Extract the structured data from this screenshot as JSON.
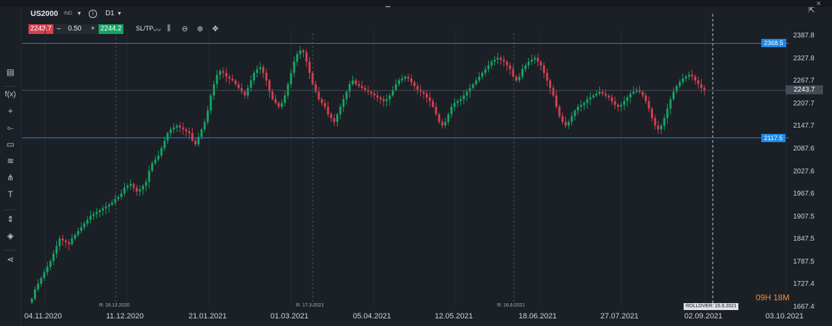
{
  "symbol": {
    "name": "US2000",
    "type": "IND",
    "timeframe": "D1"
  },
  "trade": {
    "sell": "2243.7",
    "qty": "0.50",
    "buy": "2244.2",
    "minus": "–",
    "plus": "+",
    "sltp": "SL/TP"
  },
  "icons": {
    "top": [
      "minimize-icon",
      "close-icon"
    ],
    "toolbar": [
      "line-chart-icon",
      "indicator-icon",
      "zoom-out-icon",
      "zoom-in-icon",
      "crosshair-move-icon"
    ],
    "sidebar": [
      "chart-type-icon",
      "function-icon",
      "crosshair-icon",
      "trendline-icon",
      "rectangle-icon",
      "fibonacci-icon",
      "pitchfork-icon",
      "text-icon",
      "measure-icon",
      "layers-icon",
      "share-icon"
    ],
    "expand": "expand-icon"
  },
  "chart_data": {
    "type": "candlestick",
    "y_range": [
      1667.4,
      2400
    ],
    "price_ticks": [
      "2387.8",
      "2327.8",
      "2267.7",
      "2207.7",
      "2147.7",
      "2087.6",
      "2027.6",
      "1967.6",
      "1907.5",
      "1847.5",
      "1787.5",
      "1727.4",
      "1667.4"
    ],
    "date_labels": [
      "04.11.2020",
      "11.12.2020",
      "21.01.2021",
      "01.03.2021",
      "05.04.2021",
      "12.05.2021",
      "18.06.2021",
      "27.07.2021",
      "02.09.2021",
      "03.10.2021"
    ],
    "rollover_markers": [
      "R: 16.12.2020",
      "R: 17.3.2021",
      "R: 16.6.2021"
    ],
    "rollover_badge": "ROLLOVER: 15.9.2021",
    "horizontal_lines": [
      {
        "price": 2368.5,
        "label": "2368.5"
      },
      {
        "price": 2117.5,
        "label": "2117.5"
      }
    ],
    "current_price": {
      "price": 2243.7,
      "label": "2243.7"
    },
    "countdown": "09H 18M",
    "colors": {
      "up": "#14a564",
      "down": "#d6404f",
      "hline": "#1e88e5"
    },
    "closes": [
      1690,
      1715,
      1730,
      1745,
      1760,
      1775,
      1790,
      1810,
      1830,
      1850,
      1845,
      1840,
      1835,
      1850,
      1860,
      1870,
      1880,
      1890,
      1900,
      1910,
      1915,
      1920,
      1925,
      1930,
      1935,
      1940,
      1945,
      1955,
      1960,
      1970,
      1985,
      1990,
      1995,
      1985,
      1975,
      1980,
      1990,
      2000,
      2030,
      2050,
      2060,
      2070,
      2090,
      2110,
      2130,
      2140,
      2145,
      2150,
      2145,
      2140,
      2135,
      2130,
      2110,
      2100,
      2120,
      2140,
      2160,
      2190,
      2230,
      2260,
      2285,
      2295,
      2290,
      2280,
      2275,
      2270,
      2260,
      2250,
      2240,
      2230,
      2250,
      2270,
      2290,
      2300,
      2305,
      2290,
      2270,
      2240,
      2220,
      2210,
      2200,
      2210,
      2230,
      2260,
      2290,
      2320,
      2340,
      2350,
      2345,
      2320,
      2290,
      2260,
      2240,
      2220,
      2210,
      2200,
      2180,
      2170,
      2160,
      2180,
      2200,
      2220,
      2240,
      2260,
      2270,
      2260,
      2255,
      2250,
      2245,
      2240,
      2235,
      2230,
      2225,
      2220,
      2215,
      2220,
      2230,
      2245,
      2260,
      2270,
      2275,
      2280,
      2275,
      2265,
      2255,
      2245,
      2240,
      2235,
      2225,
      2215,
      2200,
      2180,
      2160,
      2150,
      2160,
      2180,
      2200,
      2210,
      2215,
      2220,
      2230,
      2240,
      2250,
      2260,
      2270,
      2280,
      2290,
      2300,
      2310,
      2320,
      2325,
      2330,
      2325,
      2320,
      2310,
      2300,
      2280,
      2270,
      2280,
      2300,
      2310,
      2320,
      2325,
      2330,
      2320,
      2310,
      2290,
      2270,
      2250,
      2230,
      2200,
      2175,
      2160,
      2150,
      2160,
      2175,
      2190,
      2200,
      2205,
      2210,
      2220,
      2225,
      2230,
      2235,
      2240,
      2235,
      2230,
      2225,
      2215,
      2205,
      2200,
      2205,
      2215,
      2225,
      2235,
      2240,
      2245,
      2240,
      2230,
      2215,
      2195,
      2170,
      2150,
      2140,
      2150,
      2170,
      2195,
      2220,
      2240,
      2255,
      2265,
      2275,
      2280,
      2285,
      2280,
      2270,
      2260,
      2250,
      2243.7
    ]
  }
}
